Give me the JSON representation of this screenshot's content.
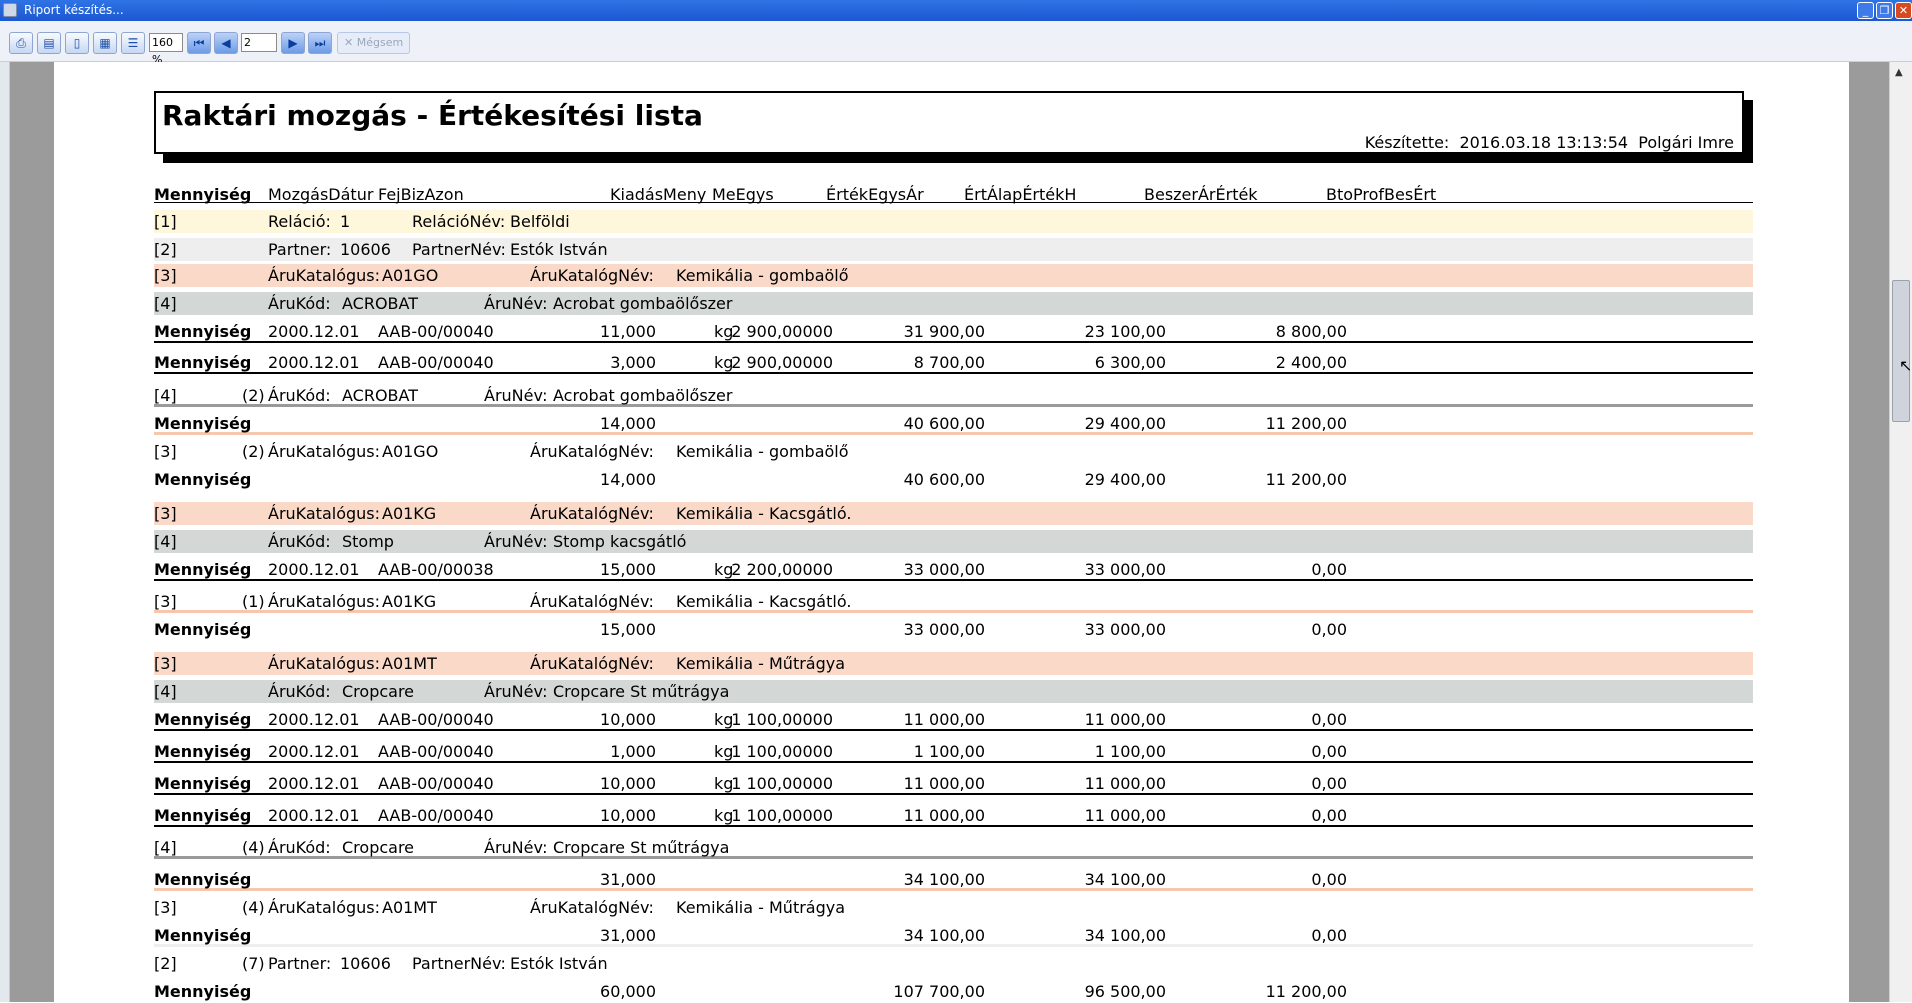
{
  "window": {
    "title": "Riport készítés..."
  },
  "toolbar": {
    "zoom": "160 %",
    "page": "2",
    "cancel": "Mégsem"
  },
  "report": {
    "title": "Raktári mozgás - Értékesítési lista",
    "created_label": "Készítette:",
    "created_value": "2016.03.18 13:13:54",
    "author": "Polgári Imre"
  },
  "headers": {
    "mennyiseg": "Mennyiség",
    "mozgasdatum": "MozgásDátur",
    "fejbizazon": "FejBizAzon",
    "kiadasmeny": "KiadásMeny",
    "meegys": "MeEgys",
    "ertekegysar": "ÉrtékEgysÁr",
    "ertalapertekh": "ÉrtÁlapÉrtékH",
    "beszerarertek": "BeszerÁrÉrték",
    "btoprofbesert": "BtoProfBesÉrt"
  },
  "rows": [
    {
      "bracket": "[1]",
      "l1": "Reláció:",
      "v1": "1",
      "l2": "RelációNév:",
      "v2": "Belföldi"
    },
    {
      "bracket": "[2]",
      "l1": "Partner:",
      "v1": "10606",
      "l2": "PartnerNév:",
      "v2": "Estók István"
    },
    {
      "bracket": "[3]",
      "l1": "ÁruKatalógus:",
      "v1": "A01GO",
      "l2": "ÁruKatalógNév:",
      "v2": "Kemikália - gombaölő"
    },
    {
      "bracket": "[4]",
      "l1": "ÁruKód:",
      "v1": "ACROBAT",
      "l2": "ÁruNév:",
      "v2": "Acrobat gombaölőszer"
    },
    {
      "q": "Mennyiség",
      "date": "2000.12.01",
      "doc": "AAB-00/00040",
      "qty": "11,000",
      "unit": "kg",
      "price": "2 900,00000",
      "val": "31 900,00",
      "cost": "23 100,00",
      "profit": "8 800,00"
    },
    {
      "q": "Mennyiség",
      "date": "2000.12.01",
      "doc": "AAB-00/00040",
      "qty": "3,000",
      "unit": "kg",
      "price": "2 900,00000",
      "val": "8 700,00",
      "cost": "6 300,00",
      "profit": "2 400,00"
    },
    {
      "bracket": "[4]",
      "count": "(2)",
      "l1": "ÁruKód:",
      "v1": "ACROBAT",
      "l2": "ÁruNév:",
      "v2": "Acrobat gombaölőszer"
    },
    {
      "q": "Mennyiség",
      "qty": "14,000",
      "val": "40 600,00",
      "cost": "29 400,00",
      "profit": "11 200,00"
    },
    {
      "bracket": "[3]",
      "count": "(2)",
      "l1": "ÁruKatalógus:",
      "v1": "A01GO",
      "l2": "ÁruKatalógNév:",
      "v2": "Kemikália - gombaölő"
    },
    {
      "q": "Mennyiség",
      "qty": "14,000",
      "val": "40 600,00",
      "cost": "29 400,00",
      "profit": "11 200,00"
    },
    {
      "bracket": "[3]",
      "l1": "ÁruKatalógus:",
      "v1": "A01KG",
      "l2": "ÁruKatalógNév:",
      "v2": "Kemikália - Kacsgátló."
    },
    {
      "bracket": "[4]",
      "l1": "ÁruKód:",
      "v1": "Stomp",
      "l2": "ÁruNév:",
      "v2": "Stomp kacsgátló"
    },
    {
      "q": "Mennyiség",
      "date": "2000.12.01",
      "doc": "AAB-00/00038",
      "qty": "15,000",
      "unit": "kg",
      "price": "2 200,00000",
      "val": "33 000,00",
      "cost": "33 000,00",
      "profit": "0,00"
    },
    {
      "bracket": "[3]",
      "count": "(1)",
      "l1": "ÁruKatalógus:",
      "v1": "A01KG",
      "l2": "ÁruKatalógNév:",
      "v2": "Kemikália - Kacsgátló."
    },
    {
      "q": "Mennyiség",
      "qty": "15,000",
      "val": "33 000,00",
      "cost": "33 000,00",
      "profit": "0,00"
    },
    {
      "bracket": "[3]",
      "l1": "ÁruKatalógus:",
      "v1": "A01MT",
      "l2": "ÁruKatalógNév:",
      "v2": "Kemikália - Műtrágya"
    },
    {
      "bracket": "[4]",
      "l1": "ÁruKód:",
      "v1": "Cropcare",
      "l2": "ÁruNév:",
      "v2": "Cropcare St műtrágya"
    },
    {
      "q": "Mennyiség",
      "date": "2000.12.01",
      "doc": "AAB-00/00040",
      "qty": "10,000",
      "unit": "kg",
      "price": "1 100,00000",
      "val": "11 000,00",
      "cost": "11 000,00",
      "profit": "0,00"
    },
    {
      "q": "Mennyiség",
      "date": "2000.12.01",
      "doc": "AAB-00/00040",
      "qty": "1,000",
      "unit": "kg",
      "price": "1 100,00000",
      "val": "1 100,00",
      "cost": "1 100,00",
      "profit": "0,00"
    },
    {
      "q": "Mennyiség",
      "date": "2000.12.01",
      "doc": "AAB-00/00040",
      "qty": "10,000",
      "unit": "kg",
      "price": "1 100,00000",
      "val": "11 000,00",
      "cost": "11 000,00",
      "profit": "0,00"
    },
    {
      "q": "Mennyiség",
      "date": "2000.12.01",
      "doc": "AAB-00/00040",
      "qty": "10,000",
      "unit": "kg",
      "price": "1 100,00000",
      "val": "11 000,00",
      "cost": "11 000,00",
      "profit": "0,00"
    },
    {
      "bracket": "[4]",
      "count": "(4)",
      "l1": "ÁruKód:",
      "v1": "Cropcare",
      "l2": "ÁruNév:",
      "v2": "Cropcare St műtrágya"
    },
    {
      "q": "Mennyiség",
      "qty": "31,000",
      "val": "34 100,00",
      "cost": "34 100,00",
      "profit": "0,00"
    },
    {
      "bracket": "[3]",
      "count": "(4)",
      "l1": "ÁruKatalógus:",
      "v1": "A01MT",
      "l2": "ÁruKatalógNév:",
      "v2": "Kemikália - Műtrágya"
    },
    {
      "q": "Mennyiség",
      "qty": "31,000",
      "val": "34 100,00",
      "cost": "34 100,00",
      "profit": "0,00"
    },
    {
      "bracket": "[2]",
      "count": "(7)",
      "l1": "Partner:",
      "v1": "10606",
      "l2": "PartnerNév:",
      "v2": "Estók István"
    },
    {
      "q": "Mennyiség",
      "qty": "60,000",
      "val": "107 700,00",
      "cost": "96 500,00",
      "profit": "11 200,00"
    }
  ]
}
